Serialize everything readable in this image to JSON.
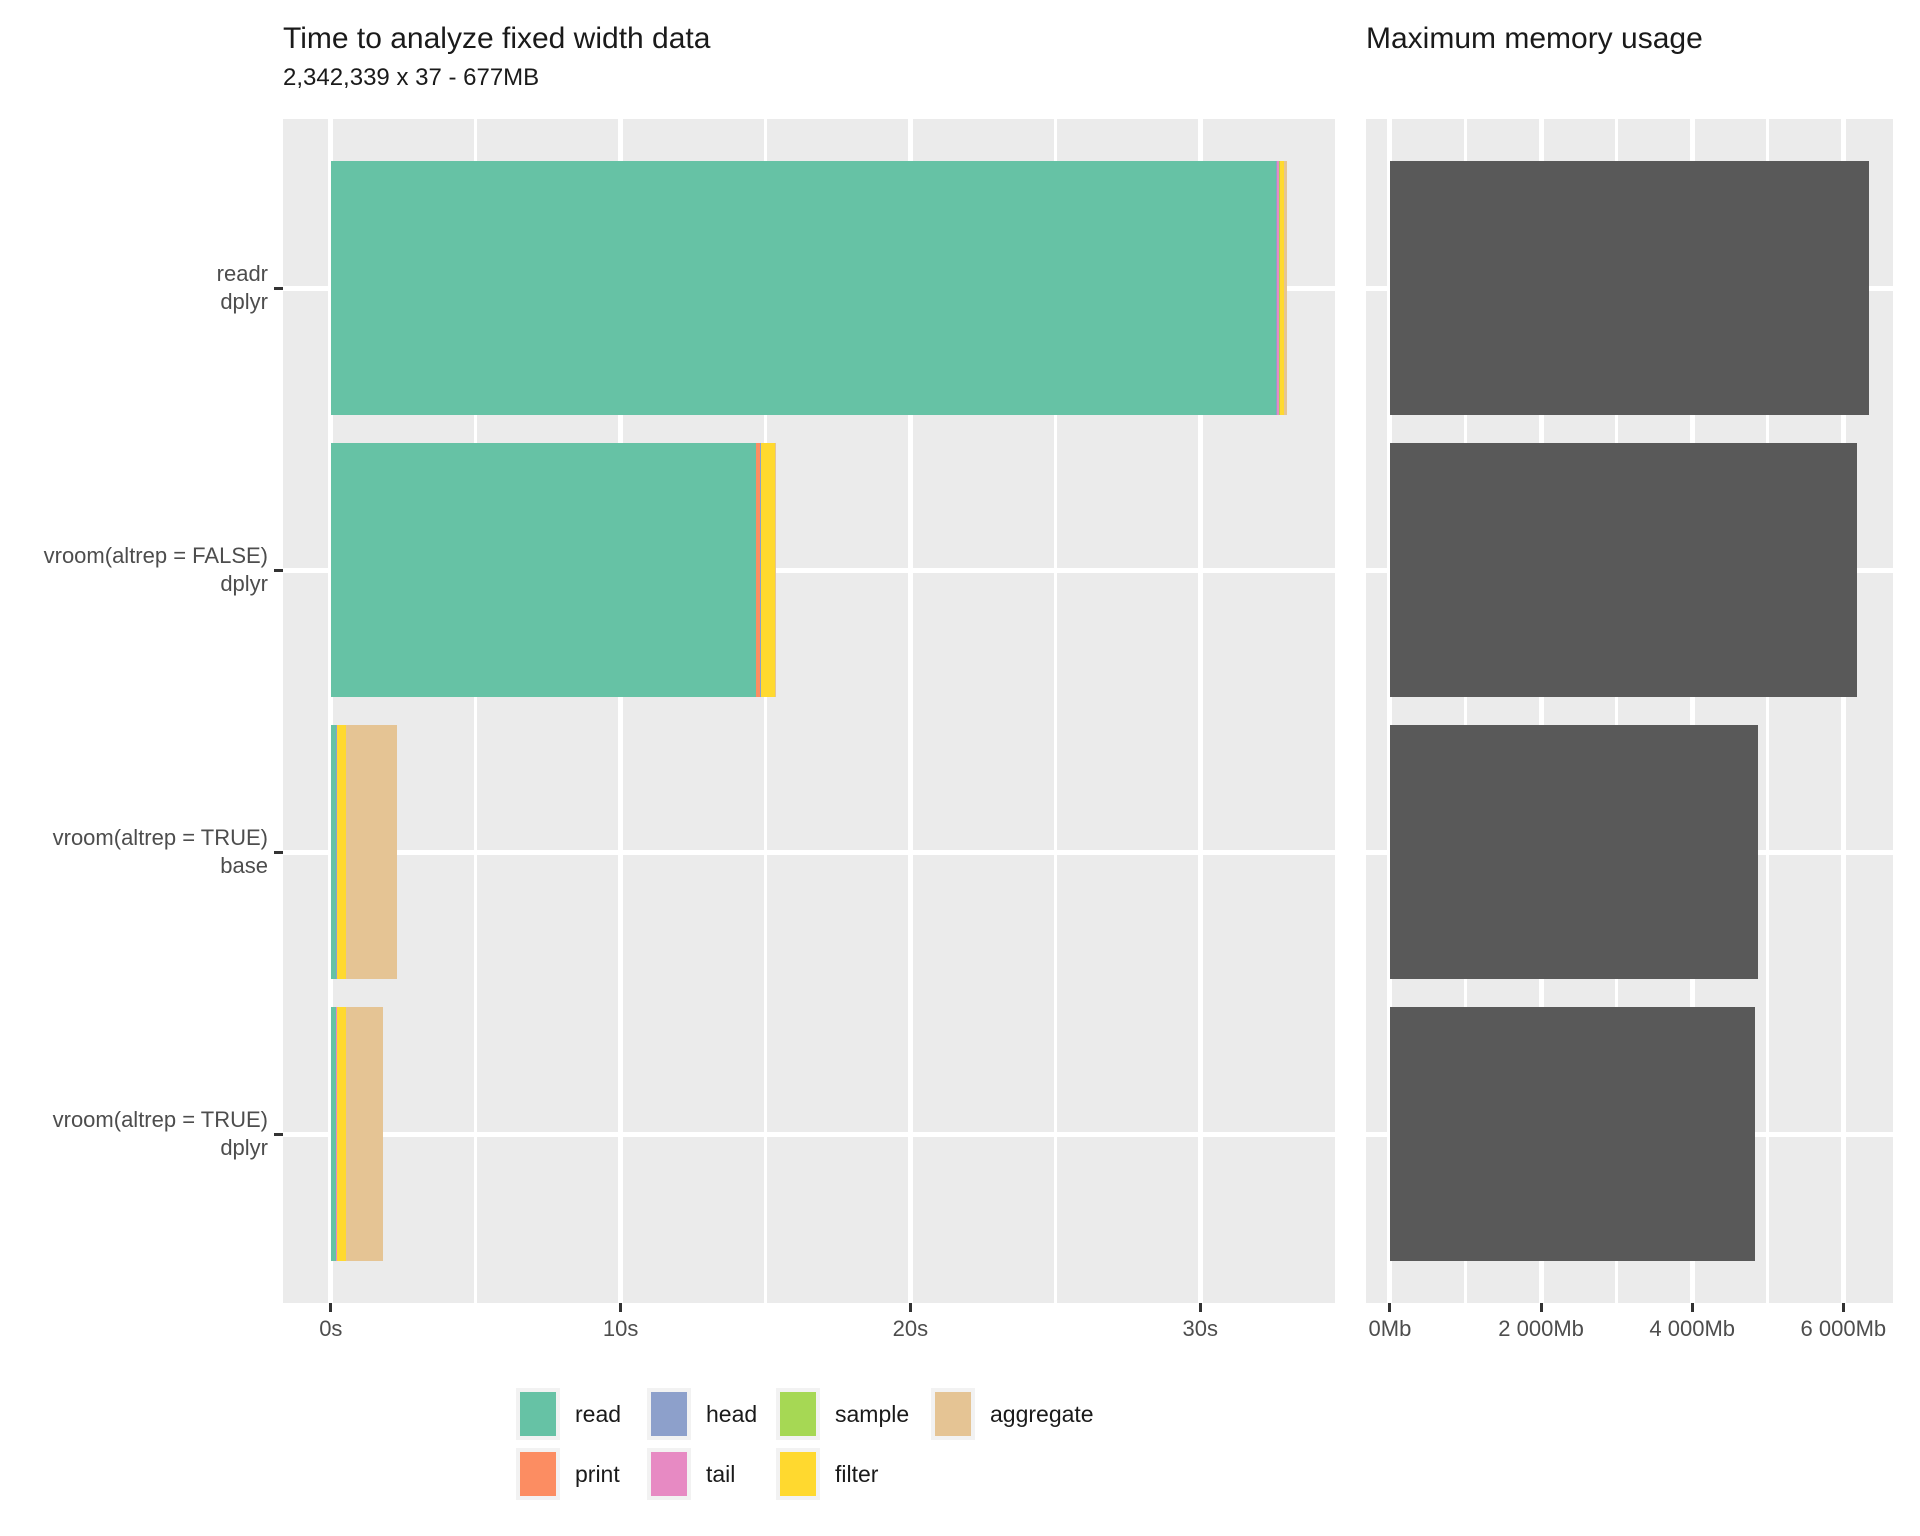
{
  "titles": {
    "left_title": "Time to analyze fixed width data",
    "left_subtitle": "2,342,339 x 37 - 677MB",
    "right_title": "Maximum memory usage"
  },
  "colors": {
    "panel_bg": "#EBEBEB",
    "grid": "#FFFFFF",
    "memory_bar": "#595959",
    "axis_text": "#4D4D4D",
    "tick_mark": "#333333",
    "title_text": "#1A1A1A",
    "legend_key_bg": "#F2F2F2",
    "series": {
      "read": "#66C2A5",
      "print": "#FC8D62",
      "head": "#8DA0CB",
      "tail": "#E78AC3",
      "sample": "#A6D854",
      "filter": "#FFD92F",
      "aggregate": "#E5C494"
    }
  },
  "chart_data": [
    {
      "id": "time",
      "type": "bar",
      "orientation": "horizontal-stacked",
      "title": "Time to analyze fixed width data",
      "subtitle": "2,342,339 x 37 - 677MB",
      "grid": true,
      "legend_position": "bottom",
      "categories": [
        {
          "line1": "readr",
          "line2": "dplyr"
        },
        {
          "line1": "vroom(altrep = FALSE)",
          "line2": "dplyr"
        },
        {
          "line1": "vroom(altrep = TRUE)",
          "line2": "base"
        },
        {
          "line1": "vroom(altrep = TRUE)",
          "line2": "dplyr"
        }
      ],
      "series_order": [
        "read",
        "print",
        "head",
        "tail",
        "sample",
        "filter",
        "aggregate"
      ],
      "values_seconds": [
        {
          "read": 32.6,
          "print": 0.03,
          "head": 0.01,
          "tail": 0.09,
          "sample": 0.01,
          "filter": 0.16,
          "aggregate": 0.08
        },
        {
          "read": 14.66,
          "print": 0.16,
          "head": 0.01,
          "tail": 0.01,
          "sample": 0.01,
          "filter": 0.47,
          "aggregate": 0.02
        },
        {
          "read": 0.18,
          "print": 0.01,
          "head": 0.01,
          "tail": 0.01,
          "sample": 0.01,
          "filter": 0.29,
          "aggregate": 1.79
        },
        {
          "read": 0.17,
          "print": 0.01,
          "head": 0.01,
          "tail": 0.01,
          "sample": 0.01,
          "filter": 0.33,
          "aggregate": 1.26
        }
      ],
      "x_axis": {
        "unit": "seconds",
        "ticks": [
          {
            "v": 0,
            "label": "0s"
          },
          {
            "v": 10,
            "label": "10s"
          },
          {
            "v": 20,
            "label": "20s"
          },
          {
            "v": 30,
            "label": "30s"
          }
        ],
        "minor": [
          5,
          15,
          25
        ],
        "range": [
          -1.65,
          34.65
        ]
      }
    },
    {
      "id": "memory",
      "type": "bar",
      "orientation": "horizontal",
      "title": "Maximum memory usage",
      "grid": true,
      "bar_color": "#595959",
      "values_mb": [
        6340,
        6180,
        4870,
        4830
      ],
      "x_axis": {
        "unit": "Mb",
        "ticks": [
          {
            "v": 0,
            "label": "0Mb"
          },
          {
            "v": 2000,
            "label": "2 000Mb"
          },
          {
            "v": 4000,
            "label": "4 000Mb"
          },
          {
            "v": 6000,
            "label": "6 000Mb"
          }
        ],
        "minor": [
          1000,
          3000,
          5000
        ],
        "range": [
          -317,
          6657
        ]
      }
    }
  ],
  "legend": {
    "rows": [
      [
        {
          "series": "read",
          "label": "read"
        },
        {
          "series": "head",
          "label": "head"
        },
        {
          "series": "sample",
          "label": "sample"
        },
        {
          "series": "aggregate",
          "label": "aggregate"
        }
      ],
      [
        {
          "series": "print",
          "label": "print"
        },
        {
          "series": "tail",
          "label": "tail"
        },
        {
          "series": "filter",
          "label": "filter"
        }
      ]
    ]
  }
}
